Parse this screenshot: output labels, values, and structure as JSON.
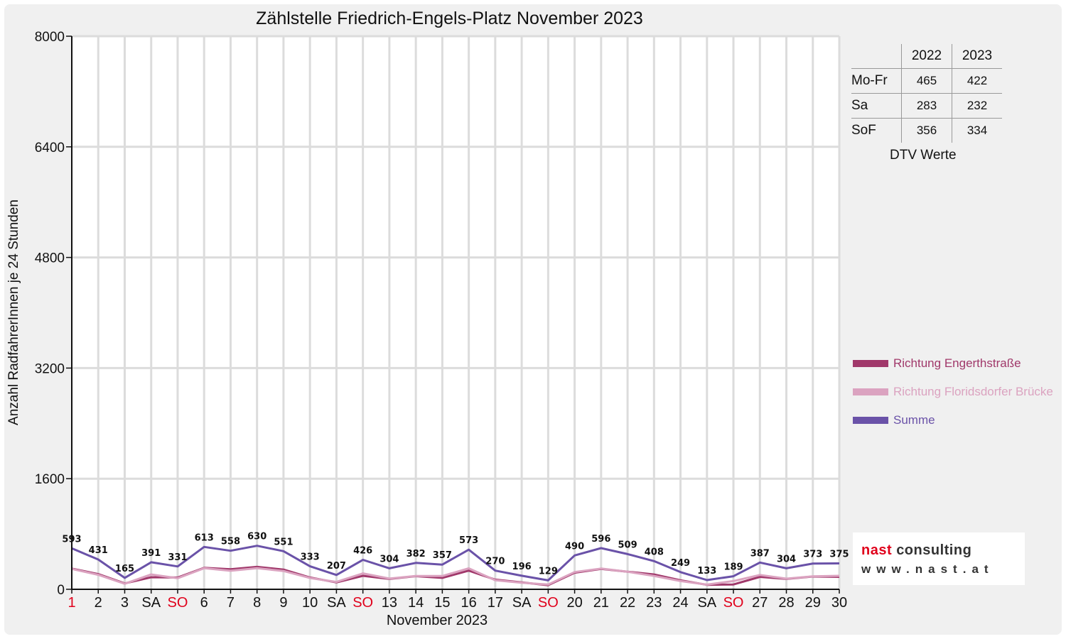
{
  "chart_data": {
    "type": "line",
    "title": "Zählstelle Friedrich-Engels-Platz November 2023",
    "xlabel": "November 2023",
    "ylabel": "Anzahl RadfahrerInnen je 24 Stunden",
    "ylim": [
      0,
      8000
    ],
    "yticks": [
      "0",
      "1600",
      "3200",
      "4800",
      "6400",
      "8000"
    ],
    "grid": true,
    "legend_position": "right",
    "categories": [
      "1",
      "2",
      "3",
      "SA",
      "SO",
      "6",
      "7",
      "8",
      "9",
      "10",
      "SA",
      "SO",
      "13",
      "14",
      "15",
      "16",
      "17",
      "SA",
      "SO",
      "20",
      "21",
      "22",
      "23",
      "24",
      "SA",
      "SO",
      "27",
      "28",
      "29",
      "30"
    ],
    "category_colors": [
      "#e0001b",
      "#111111",
      "#111111",
      "#111111",
      "#e0001b",
      "#111111",
      "#111111",
      "#111111",
      "#111111",
      "#111111",
      "#111111",
      "#e0001b",
      "#111111",
      "#111111",
      "#111111",
      "#111111",
      "#111111",
      "#111111",
      "#e0001b",
      "#111111",
      "#111111",
      "#111111",
      "#111111",
      "#111111",
      "#111111",
      "#e0001b",
      "#111111",
      "#111111",
      "#111111",
      "#111111"
    ],
    "series": [
      {
        "name": "Richtung Engerthstraße",
        "color": "#a0386a",
        "values": [
          300,
          220,
          85,
          175,
          170,
          310,
          290,
          325,
          285,
          170,
          100,
          195,
          150,
          190,
          165,
          270,
          140,
          100,
          60,
          240,
          295,
          255,
          215,
          130,
          65,
          70,
          180,
          150,
          185,
          180
        ]
      },
      {
        "name": "Richtung Floridsdorfer Brücke",
        "color": "#dba3c0",
        "values": [
          295,
          210,
          80,
          215,
          160,
          305,
          268,
          305,
          265,
          163,
          107,
          230,
          155,
          192,
          192,
          303,
          130,
          96,
          69,
          250,
          300,
          254,
          193,
          119,
          68,
          119,
          207,
          154,
          188,
          195
        ]
      },
      {
        "name": "Summe",
        "color": "#6a52a8",
        "values": [
          593,
          431,
          165,
          391,
          331,
          613,
          558,
          630,
          551,
          333,
          207,
          426,
          304,
          382,
          357,
          573,
          270,
          196,
          129,
          490,
          596,
          509,
          408,
          249,
          133,
          189,
          387,
          304,
          373,
          375
        ]
      }
    ],
    "data_labels": [
      "593",
      "431",
      "165",
      "391",
      "331",
      "613",
      "558",
      "630",
      "551",
      "333",
      "207",
      "426",
      "304",
      "382",
      "357",
      "573",
      "270",
      "196",
      "129",
      "490",
      "596",
      "509",
      "408",
      "249",
      "133",
      "189",
      "387",
      "304",
      "373",
      "375"
    ]
  },
  "dtv_table": {
    "headers": [
      "2022",
      "2023"
    ],
    "rows": [
      {
        "label": "Mo-Fr",
        "v2022": "465",
        "v2023": "422"
      },
      {
        "label": "Sa",
        "v2022": "283",
        "v2023": "232"
      },
      {
        "label": "SoF",
        "v2022": "356",
        "v2023": "334"
      }
    ],
    "caption": "DTV Werte"
  },
  "legend": [
    {
      "label": "Richtung Engerthstraße",
      "color": "#a0386a"
    },
    {
      "label": "Richtung Floridsdorfer Brücke",
      "color": "#dba3c0"
    },
    {
      "label": "Summe",
      "color": "#6a52a8"
    }
  ],
  "logo": {
    "brand_a": "nast",
    "brand_b": "consulting",
    "brand_a_color": "#e0001b",
    "brand_b_color": "#333333",
    "url": "www.nast.at"
  }
}
